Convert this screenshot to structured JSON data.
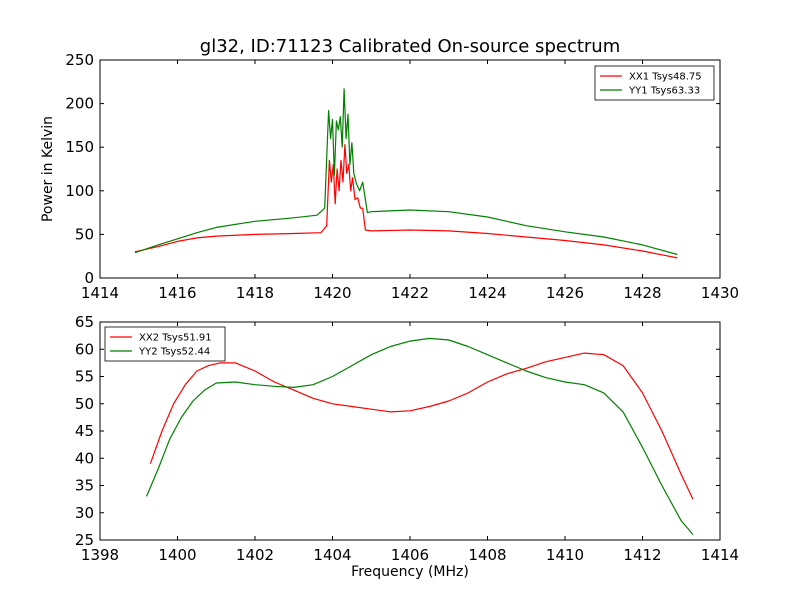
{
  "figure": {
    "title": "gl32, ID:71123 Calibrated On-source spectrum"
  },
  "chart_data": [
    {
      "type": "line",
      "title": "gl32, ID:71123 Calibrated On-source spectrum",
      "xlabel": "",
      "ylabel": "Power in Kelvin",
      "xlim": [
        1414,
        1430
      ],
      "ylim": [
        0,
        250
      ],
      "x_ticks": [
        1414,
        1416,
        1418,
        1420,
        1422,
        1424,
        1426,
        1428,
        1430
      ],
      "y_ticks": [
        0,
        50,
        100,
        150,
        200,
        250
      ],
      "grid": false,
      "legend_position": "top-right",
      "series": [
        {
          "name": "XX1 Tsys48.75",
          "color": "#ff0000",
          "x": [
            1414.9,
            1415.5,
            1416.0,
            1416.5,
            1417.0,
            1418.0,
            1419.0,
            1419.7,
            1419.85,
            1419.92,
            1419.97,
            1420.02,
            1420.07,
            1420.12,
            1420.17,
            1420.22,
            1420.27,
            1420.32,
            1420.37,
            1420.42,
            1420.47,
            1420.52,
            1420.58,
            1420.65,
            1420.72,
            1420.78,
            1420.85,
            1421.0,
            1422.0,
            1423.0,
            1424.0,
            1425.0,
            1426.0,
            1427.0,
            1428.0,
            1428.9
          ],
          "y": [
            30,
            36,
            42,
            46,
            48,
            50,
            51,
            52,
            60,
            135,
            110,
            130,
            85,
            125,
            100,
            135,
            110,
            153,
            120,
            130,
            100,
            115,
            90,
            92,
            80,
            80,
            55,
            54,
            55,
            54,
            51,
            47,
            43,
            38,
            31,
            23
          ]
        },
        {
          "name": "YY1 Tsys63.33",
          "color": "#008000",
          "x": [
            1414.9,
            1415.5,
            1416.0,
            1416.5,
            1417.0,
            1418.0,
            1419.0,
            1419.6,
            1419.8,
            1419.9,
            1419.95,
            1420.0,
            1420.05,
            1420.1,
            1420.15,
            1420.2,
            1420.25,
            1420.3,
            1420.35,
            1420.4,
            1420.45,
            1420.5,
            1420.55,
            1420.62,
            1420.7,
            1420.78,
            1420.9,
            1421.0,
            1422.0,
            1423.0,
            1424.0,
            1425.0,
            1426.0,
            1427.0,
            1428.0,
            1428.9
          ],
          "y": [
            29,
            38,
            45,
            52,
            58,
            65,
            69,
            72,
            80,
            192,
            160,
            182,
            118,
            180,
            170,
            185,
            150,
            217,
            160,
            188,
            130,
            155,
            120,
            108,
            100,
            110,
            75,
            76,
            78,
            76,
            70,
            60,
            53,
            47,
            38,
            27
          ]
        }
      ]
    },
    {
      "type": "line",
      "title": "",
      "xlabel": "Frequency (MHz)",
      "ylabel": "",
      "xlim": [
        1398,
        1414
      ],
      "ylim": [
        25,
        65
      ],
      "x_ticks": [
        1398,
        1400,
        1402,
        1404,
        1406,
        1408,
        1410,
        1412,
        1414
      ],
      "y_ticks": [
        25,
        30,
        35,
        40,
        45,
        50,
        55,
        60,
        65
      ],
      "grid": false,
      "legend_position": "top-left",
      "series": [
        {
          "name": "XX2 Tsys51.91",
          "color": "#ff0000",
          "x": [
            1399.3,
            1399.6,
            1399.9,
            1400.2,
            1400.5,
            1400.8,
            1401.1,
            1401.5,
            1402.0,
            1402.5,
            1403.0,
            1403.5,
            1404.0,
            1404.5,
            1405.0,
            1405.5,
            1406.0,
            1406.5,
            1407.0,
            1407.5,
            1408.0,
            1408.5,
            1409.0,
            1409.5,
            1410.0,
            1410.5,
            1411.0,
            1411.5,
            1412.0,
            1412.5,
            1413.0,
            1413.3
          ],
          "y": [
            39,
            45,
            50,
            53.5,
            56,
            57,
            57.5,
            57.5,
            56,
            54,
            52.5,
            51,
            50,
            49.5,
            49,
            48.5,
            48.7,
            49.5,
            50.5,
            52,
            54,
            55.5,
            56.5,
            57.7,
            58.5,
            59.3,
            59,
            57,
            52,
            45,
            37,
            32.5
          ]
        },
        {
          "name": "YY2 Tsys52.44",
          "color": "#008000",
          "x": [
            1399.2,
            1399.5,
            1399.8,
            1400.1,
            1400.4,
            1400.7,
            1401.0,
            1401.5,
            1402.0,
            1402.5,
            1403.0,
            1403.5,
            1404.0,
            1404.5,
            1405.0,
            1405.5,
            1406.0,
            1406.5,
            1407.0,
            1407.5,
            1408.0,
            1408.5,
            1409.0,
            1409.5,
            1410.0,
            1410.5,
            1411.0,
            1411.5,
            1412.0,
            1412.5,
            1413.0,
            1413.3
          ],
          "y": [
            33,
            38,
            43.5,
            47.5,
            50.5,
            52.5,
            53.8,
            54,
            53.5,
            53.2,
            53,
            53.5,
            55,
            57,
            59,
            60.5,
            61.5,
            62,
            61.7,
            60.5,
            59,
            57.5,
            56,
            54.8,
            54,
            53.5,
            52,
            48.5,
            42,
            35,
            28.5,
            26
          ]
        }
      ]
    }
  ]
}
